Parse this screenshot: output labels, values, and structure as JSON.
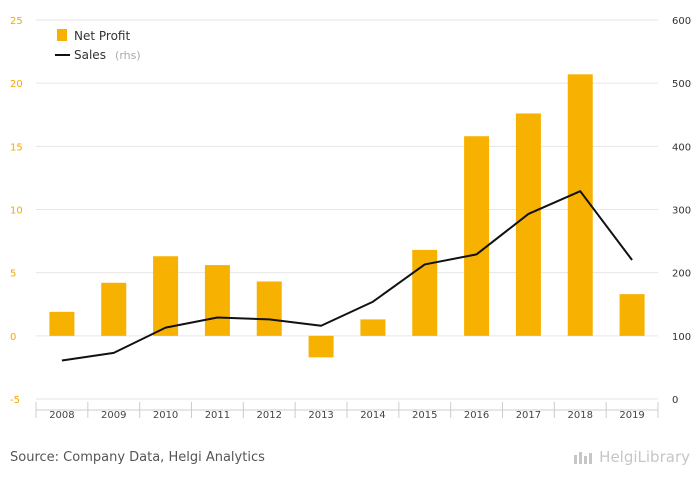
{
  "chart_data": {
    "type": "bar",
    "categories": [
      "2008",
      "2009",
      "2010",
      "2011",
      "2012",
      "2013",
      "2014",
      "2015",
      "2016",
      "2017",
      "2018",
      "2019"
    ],
    "series": [
      {
        "name": "Net Profit",
        "kind": "bar",
        "axis": "left",
        "color": "#f7b100",
        "values": [
          1.9,
          4.2,
          6.3,
          5.6,
          4.3,
          -1.7,
          1.3,
          6.8,
          15.8,
          17.6,
          20.7,
          3.3
        ]
      },
      {
        "name": "Sales",
        "name_suffix": "(rhs)",
        "kind": "line",
        "axis": "right",
        "color": "#111111",
        "values": [
          61,
          73,
          113,
          129,
          126,
          116,
          154,
          213,
          229,
          293,
          329,
          220
        ]
      }
    ],
    "y_left": {
      "min": -5,
      "max": 25,
      "ticks": [
        "25",
        "20",
        "15",
        "10",
        "5",
        "0",
        "-5"
      ]
    },
    "y_right": {
      "min": 0,
      "max": 600,
      "ticks": [
        "600",
        "500",
        "400",
        "300",
        "200",
        "100",
        "0"
      ]
    },
    "grid": true,
    "legend": "top-left"
  },
  "footer": {
    "source": "Source: Company Data, Helgi Analytics",
    "brand": "HelgiLibrary"
  }
}
